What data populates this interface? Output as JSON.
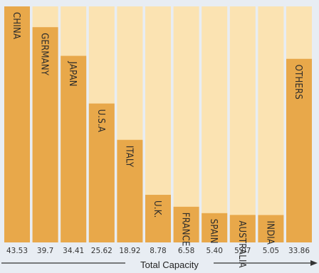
{
  "chart_data": {
    "type": "bar",
    "categories": [
      "CHINA",
      "GERMANY",
      "JAPAN",
      "U.S.A",
      "ITALY",
      "U.K.",
      "FRANCE",
      "SPAIN",
      "AUSTRALIA",
      "INDIA",
      "OTHERS"
    ],
    "values": [
      43.53,
      39.7,
      34.41,
      25.62,
      18.92,
      8.78,
      6.58,
      5.4,
      5.07,
      5.05,
      33.86
    ],
    "value_labels": [
      "43.53",
      "39.7",
      "34.41",
      "25.62",
      "18.92",
      "8.78",
      "6.58",
      "5.40",
      "5.07",
      "5.05",
      "33.86"
    ],
    "xlabel": "Total Capacity",
    "ylim": [
      0,
      43.53
    ],
    "grid": false,
    "colors": {
      "bar": "#e8a84a",
      "bar_background": "#fbe3b2",
      "page_background": "#e8edf3"
    }
  }
}
